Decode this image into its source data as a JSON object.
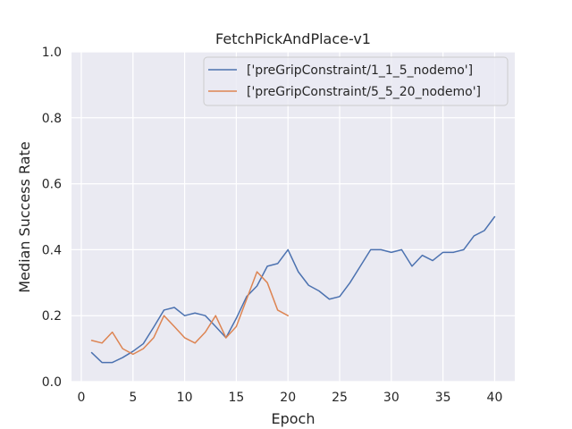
{
  "chart_data": {
    "type": "line",
    "title": "FetchPickAndPlace-v1",
    "xlabel": "Epoch",
    "ylabel": "Median Success Rate",
    "xlim": [
      -0.95,
      41.95
    ],
    "ylim": [
      0.0,
      1.0
    ],
    "xticks": [
      0,
      5,
      10,
      15,
      20,
      25,
      30,
      35,
      40
    ],
    "yticks": [
      0.0,
      0.2,
      0.4,
      0.6,
      0.8,
      1.0
    ],
    "xtick_labels": [
      "0",
      "5",
      "10",
      "15",
      "20",
      "25",
      "30",
      "35",
      "40"
    ],
    "ytick_labels": [
      "0.0",
      "0.2",
      "0.4",
      "0.6",
      "0.8",
      "1.0"
    ],
    "grid": true,
    "legend_position": "top-right",
    "series": [
      {
        "name": "['preGripConstraint/1_1_5_nodemo']",
        "color": "#4c72b0",
        "x": [
          1,
          2,
          3,
          4,
          5,
          6,
          7,
          8,
          9,
          10,
          11,
          12,
          13,
          14,
          15,
          16,
          17,
          18,
          19,
          20,
          21,
          22,
          23,
          24,
          25,
          26,
          27,
          28,
          29,
          30,
          31,
          32,
          33,
          34,
          35,
          36,
          37,
          38,
          39,
          40
        ],
        "y": [
          0.088,
          0.058,
          0.058,
          0.073,
          0.092,
          0.115,
          0.165,
          0.217,
          0.225,
          0.2,
          0.208,
          0.2,
          0.167,
          0.133,
          0.192,
          0.258,
          0.29,
          0.35,
          0.358,
          0.4,
          0.333,
          0.292,
          0.275,
          0.25,
          0.258,
          0.3,
          0.35,
          0.4,
          0.4,
          0.392,
          0.4,
          0.35,
          0.383,
          0.367,
          0.392,
          0.392,
          0.4,
          0.442,
          0.458,
          0.5
        ]
      },
      {
        "name": "['preGripConstraint/5_5_20_nodemo']",
        "color": "#dd8452",
        "x": [
          1,
          2,
          3,
          4,
          5,
          6,
          7,
          8,
          9,
          10,
          11,
          12,
          13,
          14,
          15,
          16,
          17,
          18,
          19,
          20
        ],
        "y": [
          0.125,
          0.117,
          0.15,
          0.1,
          0.083,
          0.1,
          0.133,
          0.2,
          0.167,
          0.133,
          0.117,
          0.15,
          0.2,
          0.133,
          0.167,
          0.25,
          0.333,
          0.3,
          0.217,
          0.2
        ]
      }
    ]
  }
}
